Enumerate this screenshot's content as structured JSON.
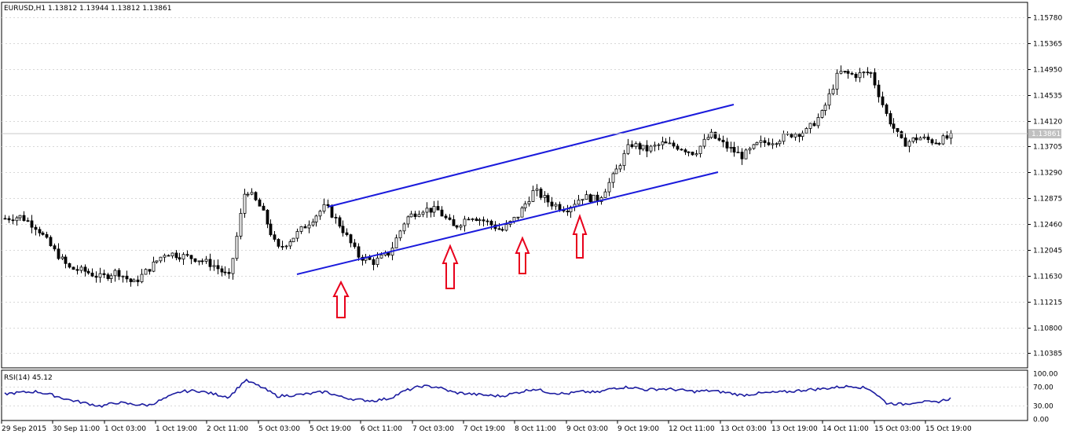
{
  "main": {
    "symbol_info": "EURUSD,H1  1.13812 1.13944 1.13812 1.13861",
    "price_scale": [
      "1.15780",
      "1.15365",
      "1.14950",
      "1.14535",
      "1.14120",
      "1.13705",
      "1.13290",
      "1.12875",
      "1.12460",
      "1.12045",
      "1.11630",
      "1.11215",
      "1.10800",
      "1.10385"
    ],
    "current_price_label": "1.13861",
    "time_scale": [
      "29 Sep 2015",
      "30 Sep 11:00",
      "1 Oct 03:00",
      "1 Oct 19:00",
      "2 Oct 11:00",
      "5 Oct 03:00",
      "5 Oct 19:00",
      "6 Oct 11:00",
      "7 Oct 03:00",
      "7 Oct 19:00",
      "8 Oct 11:00",
      "9 Oct 03:00",
      "9 Oct 19:00",
      "12 Oct 11:00",
      "13 Oct 03:00",
      "13 Oct 19:00",
      "14 Oct 11:00",
      "15 Oct 03:00",
      "15 Oct 19:00"
    ]
  },
  "indicator": {
    "label": "RSI(14) 45.12",
    "scale": [
      "100.00",
      "70.00",
      "30.00",
      "0.00"
    ]
  },
  "colors": {
    "background": "#ffffff",
    "grid": "#c8c8c8",
    "candles": "#000000",
    "channel_lines": "#1a1adc",
    "arrows": "#e8001c",
    "rsi_line": "#1c1ca0"
  },
  "annotations": {
    "channel": "ascending channel (two parallel trend lines)",
    "arrows": [
      "up-arrow-1",
      "up-arrow-2",
      "up-arrow-3",
      "up-arrow-4"
    ]
  },
  "chart_data": [
    {
      "type": "candlestick",
      "title": "EURUSD,H1",
      "xlabel": "",
      "ylabel": "",
      "ylim": [
        1.1015,
        1.1602
      ],
      "grid": true,
      "anchors_x": [
        "29 Sep 2015",
        "30 Sep 11:00",
        "1 Oct 03:00",
        "1 Oct 19:00",
        "2 Oct 11:00",
        "5 Oct 03:00",
        "5 Oct 19:00",
        "6 Oct 11:00",
        "7 Oct 03:00",
        "7 Oct 19:00",
        "8 Oct 11:00",
        "9 Oct 03:00",
        "9 Oct 19:00",
        "12 Oct 11:00",
        "13 Oct 03:00",
        "13 Oct 19:00",
        "14 Oct 11:00",
        "15 Oct 03:00",
        "15 Oct 19:00"
      ],
      "close_path": [
        1.1255,
        1.1258,
        1.124,
        1.1205,
        1.1175,
        1.117,
        1.116,
        1.117,
        1.115,
        1.1175,
        1.12,
        1.1195,
        1.119,
        1.118,
        1.116,
        1.1305,
        1.127,
        1.1205,
        1.1225,
        1.125,
        1.1275,
        1.124,
        1.1195,
        1.1185,
        1.12,
        1.1255,
        1.127,
        1.1268,
        1.124,
        1.126,
        1.125,
        1.1235,
        1.126,
        1.13,
        1.128,
        1.127,
        1.129,
        1.1285,
        1.1325,
        1.1375,
        1.1365,
        1.1375,
        1.137,
        1.136,
        1.139,
        1.137,
        1.1355,
        1.1375,
        1.138,
        1.139,
        1.1395,
        1.1425,
        1.149,
        1.1485,
        1.149,
        1.142,
        1.1375,
        1.1385,
        1.1378,
        1.1386
      ]
    },
    {
      "type": "line",
      "title": "RSI(14)",
      "ylim": [
        0,
        100
      ],
      "series": [
        {
          "name": "RSI(14)",
          "values": [
            55,
            58,
            60,
            52,
            42,
            35,
            28,
            36,
            32,
            30,
            45,
            60,
            62,
            55,
            48,
            85,
            70,
            50,
            52,
            55,
            60,
            48,
            42,
            40,
            45,
            62,
            72,
            70,
            58,
            55,
            52,
            50,
            58,
            66,
            58,
            55,
            60,
            58,
            68,
            70,
            64,
            66,
            64,
            60,
            62,
            58,
            52,
            56,
            58,
            60,
            64,
            66,
            70,
            72,
            65,
            35,
            32,
            38,
            36,
            45
          ]
        }
      ]
    }
  ]
}
